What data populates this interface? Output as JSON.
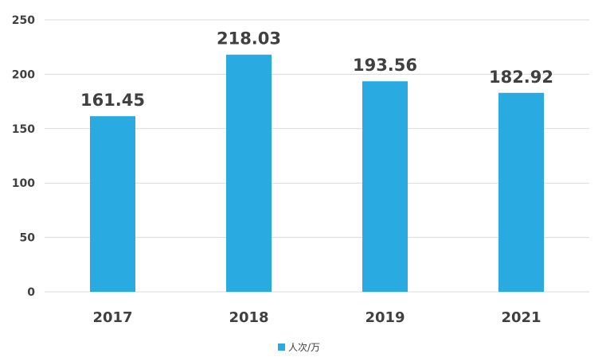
{
  "chart_data": {
    "type": "bar",
    "categories": [
      "2017",
      "2018",
      "2019",
      "2021"
    ],
    "series": [
      {
        "name": "人次/万",
        "values": [
          161.45,
          218.03,
          193.56,
          182.92
        ],
        "labels": [
          "161.45",
          "218.03",
          "193.56",
          "182.92"
        ],
        "color": "#29ABE2"
      }
    ],
    "ylim": [
      0,
      250
    ],
    "yticks": [
      0,
      50,
      100,
      150,
      200,
      250
    ],
    "grid": true,
    "legend": "bottom",
    "colors": {
      "bar": "#29ABE2",
      "grid": "#D9D9D9",
      "text": "#404040"
    }
  }
}
